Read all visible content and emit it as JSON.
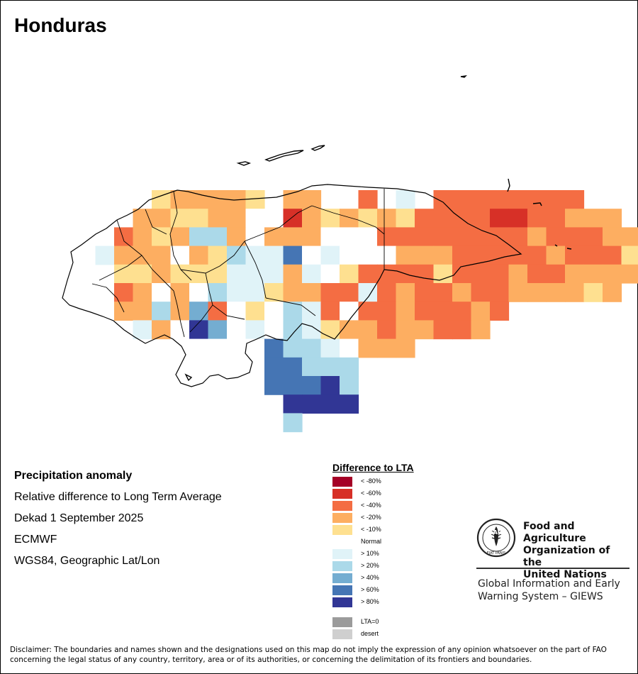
{
  "map": {
    "title": "Honduras",
    "legend_title": "Difference to LTA",
    "legend": [
      {
        "label": "< -80%",
        "color": "#a50026"
      },
      {
        "label": "< -60%",
        "color": "#d73027"
      },
      {
        "label": "< -40%",
        "color": "#f46d43"
      },
      {
        "label": "< -20%",
        "color": "#fdae61"
      },
      {
        "label": "< -10%",
        "color": "#fee090"
      },
      {
        "label": "Normal",
        "color": "#ffffff"
      },
      {
        "label": "> 10%",
        "color": "#e0f3f8"
      },
      {
        "label": "> 20%",
        "color": "#abd9e9"
      },
      {
        "label": "> 40%",
        "color": "#74add1"
      },
      {
        "label": "> 60%",
        "color": "#4575b4"
      },
      {
        "label": "> 80%",
        "color": "#313695"
      }
    ],
    "legend_extra": [
      {
        "label": "LTA=0",
        "color": "#9b9b9b"
      },
      {
        "label": "desert",
        "color": "#cfcfcf"
      }
    ]
  },
  "info": {
    "heading": "Precipitation anomaly",
    "line1": "Relative difference to Long Term Average",
    "line2": "Dekad 1 September 2025",
    "line3": "ECMWF",
    "line4": "WGS84, Geographic Lat/Lon"
  },
  "fao": {
    "org_line1": "Food and Agriculture",
    "org_line2": "Organization of the",
    "org_line3": "United Nations",
    "logo_text": "FAO",
    "logo_motto": "FIAT PANIS",
    "giews_line1": "Global Information and Early",
    "giews_line2": "Warning System – GIEWS"
  },
  "disclaimer": {
    "line1": "Disclaimer: The boundaries and names shown and the designations used on this map do not imply the expression of any opinion whatsoever on the part of FAO",
    "line2": "concerning the legal status of any country, territory, area or of its authorities, or concerning the delimitation of its frontiers and boundaries."
  }
}
